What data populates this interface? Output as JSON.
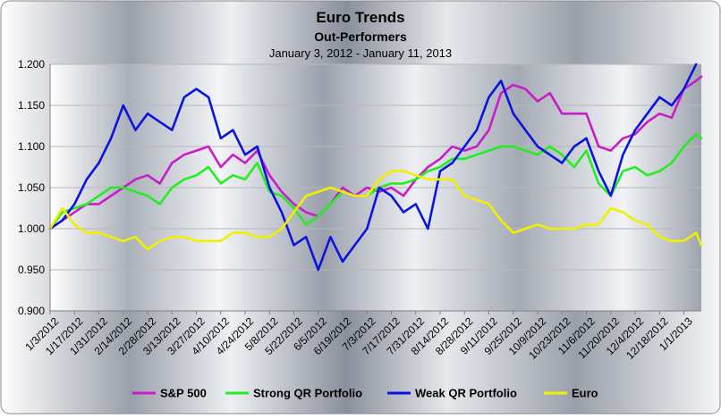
{
  "chart_data": {
    "type": "line",
    "title": "Euro Trends",
    "subtitle": "Out-Performers",
    "date_range": "January 3, 2012 - January 11, 2013",
    "xlabel": "",
    "ylabel": "",
    "ylim": [
      0.9,
      1.2
    ],
    "y_ticks": [
      "0.900",
      "0.950",
      "1.000",
      "1.050",
      "1.100",
      "1.150",
      "1.200"
    ],
    "x_tick_labels": [
      "1/3/2012",
      "1/17/2012",
      "1/31/2012",
      "2/14/2012",
      "2/28/2012",
      "3/13/2012",
      "3/27/2012",
      "4/10/2012",
      "4/24/2012",
      "5/8/2012",
      "5/22/2012",
      "6/5/2012",
      "6/19/2012",
      "7/3/2012",
      "7/17/2012",
      "7/31/2012",
      "8/14/2012",
      "8/28/2012",
      "9/11/2012",
      "9/25/2012",
      "10/9/2012",
      "10/23/2012",
      "11/6/2012",
      "11/20/2012",
      "12/4/2012",
      "12/18/2012",
      "1/1/2013"
    ],
    "x_start": "1/3/2012",
    "x_end": "1/11/2013",
    "grid": "horizontal",
    "legend_position": "bottom",
    "series": [
      {
        "name": "S&P 500",
        "color": "#c81ec8",
        "points": [
          [
            "1/3/2012",
            1.0
          ],
          [
            "1/10/2012",
            1.01
          ],
          [
            "1/17/2012",
            1.02
          ],
          [
            "1/24/2012",
            1.03
          ],
          [
            "1/31/2012",
            1.03
          ],
          [
            "2/7/2012",
            1.04
          ],
          [
            "2/14/2012",
            1.05
          ],
          [
            "2/21/2012",
            1.06
          ],
          [
            "2/28/2012",
            1.065
          ],
          [
            "3/6/2012",
            1.055
          ],
          [
            "3/13/2012",
            1.08
          ],
          [
            "3/20/2012",
            1.09
          ],
          [
            "3/27/2012",
            1.095
          ],
          [
            "4/3/2012",
            1.1
          ],
          [
            "4/10/2012",
            1.075
          ],
          [
            "4/17/2012",
            1.09
          ],
          [
            "4/24/2012",
            1.08
          ],
          [
            "5/1/2012",
            1.095
          ],
          [
            "5/8/2012",
            1.065
          ],
          [
            "5/15/2012",
            1.045
          ],
          [
            "5/22/2012",
            1.03
          ],
          [
            "5/29/2012",
            1.02
          ],
          [
            "6/5/2012",
            1.015
          ],
          [
            "6/12/2012",
            1.03
          ],
          [
            "6/19/2012",
            1.05
          ],
          [
            "6/26/2012",
            1.04
          ],
          [
            "7/3/2012",
            1.05
          ],
          [
            "7/10/2012",
            1.045
          ],
          [
            "7/17/2012",
            1.05
          ],
          [
            "7/24/2012",
            1.04
          ],
          [
            "7/31/2012",
            1.06
          ],
          [
            "8/7/2012",
            1.075
          ],
          [
            "8/14/2012",
            1.085
          ],
          [
            "8/21/2012",
            1.1
          ],
          [
            "8/28/2012",
            1.095
          ],
          [
            "9/4/2012",
            1.1
          ],
          [
            "9/11/2012",
            1.12
          ],
          [
            "9/18/2012",
            1.165
          ],
          [
            "9/25/2012",
            1.175
          ],
          [
            "10/2/2012",
            1.17
          ],
          [
            "10/9/2012",
            1.155
          ],
          [
            "10/16/2012",
            1.165
          ],
          [
            "10/23/2012",
            1.14
          ],
          [
            "10/30/2012",
            1.14
          ],
          [
            "11/6/2012",
            1.14
          ],
          [
            "11/13/2012",
            1.1
          ],
          [
            "11/20/2012",
            1.095
          ],
          [
            "11/27/2012",
            1.11
          ],
          [
            "12/4/2012",
            1.115
          ],
          [
            "12/11/2012",
            1.13
          ],
          [
            "12/18/2012",
            1.14
          ],
          [
            "12/25/2012",
            1.135
          ],
          [
            "1/1/2013",
            1.17
          ],
          [
            "1/8/2013",
            1.18
          ],
          [
            "1/11/2013",
            1.185
          ]
        ]
      },
      {
        "name": "Strong QR Portfolio",
        "color": "#22ee22",
        "points": [
          [
            "1/3/2012",
            1.0
          ],
          [
            "1/10/2012",
            1.02
          ],
          [
            "1/17/2012",
            1.025
          ],
          [
            "1/24/2012",
            1.03
          ],
          [
            "1/31/2012",
            1.04
          ],
          [
            "2/7/2012",
            1.05
          ],
          [
            "2/14/2012",
            1.05
          ],
          [
            "2/21/2012",
            1.045
          ],
          [
            "2/28/2012",
            1.04
          ],
          [
            "3/6/2012",
            1.03
          ],
          [
            "3/13/2012",
            1.05
          ],
          [
            "3/20/2012",
            1.06
          ],
          [
            "3/27/2012",
            1.065
          ],
          [
            "4/3/2012",
            1.075
          ],
          [
            "4/10/2012",
            1.055
          ],
          [
            "4/17/2012",
            1.065
          ],
          [
            "4/24/2012",
            1.06
          ],
          [
            "5/1/2012",
            1.08
          ],
          [
            "5/8/2012",
            1.045
          ],
          [
            "5/15/2012",
            1.04
          ],
          [
            "5/22/2012",
            1.025
          ],
          [
            "5/29/2012",
            1.005
          ],
          [
            "6/5/2012",
            1.015
          ],
          [
            "6/12/2012",
            1.03
          ],
          [
            "6/19/2012",
            1.045
          ],
          [
            "6/26/2012",
            1.04
          ],
          [
            "7/3/2012",
            1.04
          ],
          [
            "7/10/2012",
            1.05
          ],
          [
            "7/17/2012",
            1.055
          ],
          [
            "7/24/2012",
            1.055
          ],
          [
            "7/31/2012",
            1.06
          ],
          [
            "8/7/2012",
            1.07
          ],
          [
            "8/14/2012",
            1.075
          ],
          [
            "8/21/2012",
            1.085
          ],
          [
            "8/28/2012",
            1.085
          ],
          [
            "9/4/2012",
            1.09
          ],
          [
            "9/11/2012",
            1.095
          ],
          [
            "9/18/2012",
            1.1
          ],
          [
            "9/25/2012",
            1.1
          ],
          [
            "10/2/2012",
            1.095
          ],
          [
            "10/9/2012",
            1.09
          ],
          [
            "10/16/2012",
            1.1
          ],
          [
            "10/23/2012",
            1.09
          ],
          [
            "10/30/2012",
            1.075
          ],
          [
            "11/6/2012",
            1.095
          ],
          [
            "11/13/2012",
            1.055
          ],
          [
            "11/20/2012",
            1.04
          ],
          [
            "11/27/2012",
            1.07
          ],
          [
            "12/4/2012",
            1.075
          ],
          [
            "12/11/2012",
            1.065
          ],
          [
            "12/18/2012",
            1.07
          ],
          [
            "12/25/2012",
            1.08
          ],
          [
            "1/1/2013",
            1.1
          ],
          [
            "1/8/2013",
            1.115
          ],
          [
            "1/11/2013",
            1.11
          ]
        ]
      },
      {
        "name": "Weak QR Portfolio",
        "color": "#0a14dc",
        "points": [
          [
            "1/3/2012",
            1.0
          ],
          [
            "1/10/2012",
            1.01
          ],
          [
            "1/17/2012",
            1.03
          ],
          [
            "1/24/2012",
            1.06
          ],
          [
            "1/31/2012",
            1.08
          ],
          [
            "2/7/2012",
            1.11
          ],
          [
            "2/14/2012",
            1.15
          ],
          [
            "2/21/2012",
            1.12
          ],
          [
            "2/28/2012",
            1.14
          ],
          [
            "3/6/2012",
            1.13
          ],
          [
            "3/13/2012",
            1.12
          ],
          [
            "3/20/2012",
            1.16
          ],
          [
            "3/27/2012",
            1.17
          ],
          [
            "4/3/2012",
            1.16
          ],
          [
            "4/10/2012",
            1.11
          ],
          [
            "4/17/2012",
            1.12
          ],
          [
            "4/24/2012",
            1.09
          ],
          [
            "5/1/2012",
            1.1
          ],
          [
            "5/8/2012",
            1.05
          ],
          [
            "5/15/2012",
            1.02
          ],
          [
            "5/22/2012",
            0.98
          ],
          [
            "5/29/2012",
            0.99
          ],
          [
            "6/5/2012",
            0.95
          ],
          [
            "6/12/2012",
            0.99
          ],
          [
            "6/19/2012",
            0.96
          ],
          [
            "6/26/2012",
            0.98
          ],
          [
            "7/3/2012",
            1.0
          ],
          [
            "7/10/2012",
            1.05
          ],
          [
            "7/17/2012",
            1.04
          ],
          [
            "7/24/2012",
            1.02
          ],
          [
            "7/31/2012",
            1.03
          ],
          [
            "8/7/2012",
            1.0
          ],
          [
            "8/14/2012",
            1.07
          ],
          [
            "8/21/2012",
            1.08
          ],
          [
            "8/28/2012",
            1.1
          ],
          [
            "9/4/2012",
            1.12
          ],
          [
            "9/11/2012",
            1.16
          ],
          [
            "9/18/2012",
            1.18
          ],
          [
            "9/25/2012",
            1.14
          ],
          [
            "10/2/2012",
            1.12
          ],
          [
            "10/9/2012",
            1.1
          ],
          [
            "10/16/2012",
            1.09
          ],
          [
            "10/23/2012",
            1.08
          ],
          [
            "10/30/2012",
            1.1
          ],
          [
            "11/6/2012",
            1.11
          ],
          [
            "11/13/2012",
            1.07
          ],
          [
            "11/20/2012",
            1.04
          ],
          [
            "11/27/2012",
            1.09
          ],
          [
            "12/4/2012",
            1.12
          ],
          [
            "12/11/2012",
            1.14
          ],
          [
            "12/18/2012",
            1.16
          ],
          [
            "12/25/2012",
            1.15
          ],
          [
            "1/1/2013",
            1.17
          ],
          [
            "1/8/2013",
            1.2
          ]
        ]
      },
      {
        "name": "Euro",
        "color": "#f0f000",
        "points": [
          [
            "1/3/2012",
            1.0
          ],
          [
            "1/10/2012",
            1.025
          ],
          [
            "1/17/2012",
            1.005
          ],
          [
            "1/24/2012",
            0.995
          ],
          [
            "1/31/2012",
            0.995
          ],
          [
            "2/7/2012",
            0.99
          ],
          [
            "2/14/2012",
            0.985
          ],
          [
            "2/21/2012",
            0.99
          ],
          [
            "2/28/2012",
            0.975
          ],
          [
            "3/6/2012",
            0.985
          ],
          [
            "3/13/2012",
            0.99
          ],
          [
            "3/20/2012",
            0.99
          ],
          [
            "3/27/2012",
            0.985
          ],
          [
            "4/3/2012",
            0.985
          ],
          [
            "4/10/2012",
            0.985
          ],
          [
            "4/17/2012",
            0.995
          ],
          [
            "4/24/2012",
            0.995
          ],
          [
            "5/1/2012",
            0.99
          ],
          [
            "5/8/2012",
            0.99
          ],
          [
            "5/15/2012",
            1.0
          ],
          [
            "5/22/2012",
            1.02
          ],
          [
            "5/29/2012",
            1.04
          ],
          [
            "6/5/2012",
            1.045
          ],
          [
            "6/12/2012",
            1.05
          ],
          [
            "6/19/2012",
            1.045
          ],
          [
            "6/26/2012",
            1.04
          ],
          [
            "7/3/2012",
            1.04
          ],
          [
            "7/10/2012",
            1.06
          ],
          [
            "7/17/2012",
            1.07
          ],
          [
            "7/24/2012",
            1.07
          ],
          [
            "7/31/2012",
            1.065
          ],
          [
            "8/7/2012",
            1.06
          ],
          [
            "8/14/2012",
            1.06
          ],
          [
            "8/21/2012",
            1.06
          ],
          [
            "8/28/2012",
            1.04
          ],
          [
            "9/4/2012",
            1.035
          ],
          [
            "9/11/2012",
            1.03
          ],
          [
            "9/18/2012",
            1.01
          ],
          [
            "9/25/2012",
            0.995
          ],
          [
            "10/2/2012",
            1.0
          ],
          [
            "10/9/2012",
            1.005
          ],
          [
            "10/16/2012",
            1.0
          ],
          [
            "10/23/2012",
            1.0
          ],
          [
            "10/30/2012",
            1.0
          ],
          [
            "11/6/2012",
            1.005
          ],
          [
            "11/13/2012",
            1.005
          ],
          [
            "11/20/2012",
            1.025
          ],
          [
            "11/27/2012",
            1.02
          ],
          [
            "12/4/2012",
            1.01
          ],
          [
            "12/11/2012",
            1.005
          ],
          [
            "12/18/2012",
            0.99
          ],
          [
            "12/25/2012",
            0.985
          ],
          [
            "1/1/2013",
            0.985
          ],
          [
            "1/8/2013",
            0.995
          ],
          [
            "1/11/2013",
            0.98
          ]
        ]
      }
    ]
  }
}
